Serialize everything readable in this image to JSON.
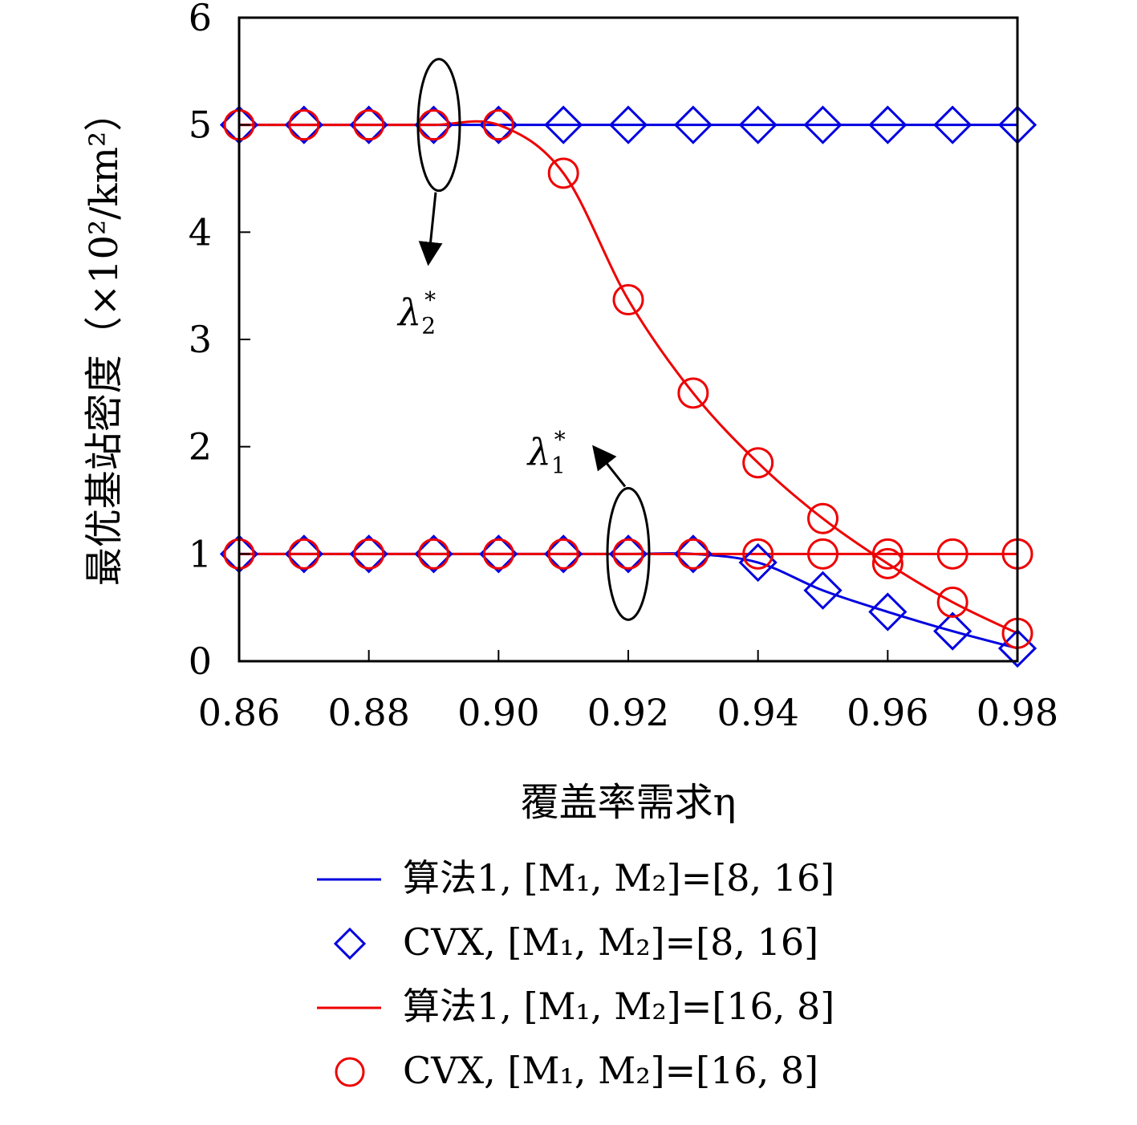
{
  "chart_data": {
    "type": "line",
    "title": "",
    "xlabel": "覆盖率需求η",
    "ylabel": "最优基站密度（×10²/km²）",
    "xlim": [
      0.86,
      0.98
    ],
    "ylim": [
      0,
      6
    ],
    "xticks": [
      "0.86",
      "0.88",
      "0.90",
      "0.92",
      "0.94",
      "0.96",
      "0.98"
    ],
    "yticks": [
      "0",
      "1",
      "2",
      "3",
      "4",
      "5",
      "6"
    ],
    "grid": false,
    "legend_position": "bottom",
    "colors": {
      "blue": "#0000e0",
      "red": "#ee0000"
    },
    "series": [
      {
        "name": "算法1, [M1, M2]=[8, 16]",
        "style": "line",
        "color": "blue",
        "group": "lambda2",
        "x": [
          0.86,
          0.87,
          0.88,
          0.89,
          0.9,
          0.91,
          0.92,
          0.93,
          0.94,
          0.95,
          0.96,
          0.97,
          0.98
        ],
        "y": [
          5,
          5,
          5,
          5,
          5,
          5,
          5,
          5,
          5,
          5,
          5,
          5,
          5
        ]
      },
      {
        "name": "算法1, [M1, M2]=[8, 16]",
        "style": "line",
        "color": "blue",
        "group": "lambda1",
        "x": [
          0.86,
          0.87,
          0.88,
          0.89,
          0.9,
          0.91,
          0.92,
          0.93,
          0.94,
          0.95,
          0.96,
          0.97,
          0.98
        ],
        "y": [
          1,
          1,
          1,
          1,
          1,
          1,
          1,
          1,
          0.92,
          0.66,
          0.46,
          0.28,
          0.12
        ]
      },
      {
        "name": "CVX, [M1, M2]=[8, 16]",
        "style": "marker",
        "marker": "diamond",
        "color": "blue",
        "group": "lambda2",
        "x": [
          0.86,
          0.87,
          0.88,
          0.89,
          0.9,
          0.91,
          0.92,
          0.93,
          0.94,
          0.95,
          0.96,
          0.97,
          0.98
        ],
        "y": [
          5,
          5,
          5,
          5,
          5,
          5,
          5,
          5,
          5,
          5,
          5,
          5,
          5
        ]
      },
      {
        "name": "CVX, [M1, M2]=[8, 16]",
        "style": "marker",
        "marker": "diamond",
        "color": "blue",
        "group": "lambda1",
        "x": [
          0.86,
          0.87,
          0.88,
          0.89,
          0.9,
          0.91,
          0.92,
          0.93,
          0.94,
          0.95,
          0.96,
          0.97,
          0.98
        ],
        "y": [
          1,
          1,
          1,
          1,
          1,
          1,
          1,
          1,
          0.92,
          0.66,
          0.46,
          0.28,
          0.12
        ]
      },
      {
        "name": "算法1, [M1, M2]=[16, 8]",
        "style": "line",
        "color": "red",
        "group": "lambda2",
        "x": [
          0.86,
          0.87,
          0.88,
          0.89,
          0.9,
          0.91,
          0.92,
          0.93,
          0.94,
          0.95,
          0.96,
          0.97,
          0.98
        ],
        "y": [
          5,
          5,
          5,
          5,
          5,
          4.55,
          3.37,
          2.5,
          1.85,
          1.33,
          0.91,
          0.55,
          0.26
        ]
      },
      {
        "name": "算法1, [M1, M2]=[16, 8]",
        "style": "line",
        "color": "red",
        "group": "lambda1",
        "x": [
          0.86,
          0.87,
          0.88,
          0.89,
          0.9,
          0.91,
          0.92,
          0.93,
          0.94,
          0.95,
          0.96,
          0.97,
          0.98
        ],
        "y": [
          1,
          1,
          1,
          1,
          1,
          1,
          1,
          1,
          1,
          1,
          1,
          1,
          1
        ]
      },
      {
        "name": "CVX, [M1, M2]=[16, 8]",
        "style": "marker",
        "marker": "circle",
        "color": "red",
        "group": "lambda2",
        "x": [
          0.86,
          0.87,
          0.88,
          0.89,
          0.9,
          0.91,
          0.92,
          0.93,
          0.94,
          0.95,
          0.96,
          0.97,
          0.98
        ],
        "y": [
          5,
          5,
          5,
          5,
          5,
          4.55,
          3.37,
          2.5,
          1.85,
          1.33,
          0.91,
          0.55,
          0.26
        ]
      },
      {
        "name": "CVX, [M1, M2]=[16, 8]",
        "style": "marker",
        "marker": "circle",
        "color": "red",
        "group": "lambda1",
        "x": [
          0.86,
          0.87,
          0.88,
          0.89,
          0.9,
          0.91,
          0.92,
          0.93,
          0.94,
          0.95,
          0.96,
          0.97,
          0.98
        ],
        "y": [
          1,
          1,
          1,
          1,
          1,
          1,
          1,
          1,
          1,
          1,
          1,
          1,
          1
        ]
      }
    ],
    "annotations": [
      {
        "symbol": "λ",
        "sub": "2",
        "sup": "*",
        "target": "lambda2",
        "ellipse_center": [
          0.8908,
          5.0
        ],
        "label_at": [
          0.8855,
          3.25
        ]
      },
      {
        "symbol": "λ",
        "sub": "1",
        "sup": "*",
        "target": "lambda1",
        "ellipse_center": [
          0.92,
          1.0
        ],
        "label_at": [
          0.9055,
          1.95
        ]
      }
    ],
    "legend": [
      {
        "label": "算法1, [M₁, M₂]=[8, 16]",
        "kind": "line",
        "color": "blue"
      },
      {
        "label": "CVX, [M₁, M₂]=[8, 16]",
        "kind": "diamond",
        "color": "blue"
      },
      {
        "label": "算法1, [M₁, M₂]=[16, 8]",
        "kind": "line",
        "color": "red"
      },
      {
        "label": "CVX, [M₁, M₂]=[16, 8]",
        "kind": "circle",
        "color": "red"
      }
    ]
  }
}
